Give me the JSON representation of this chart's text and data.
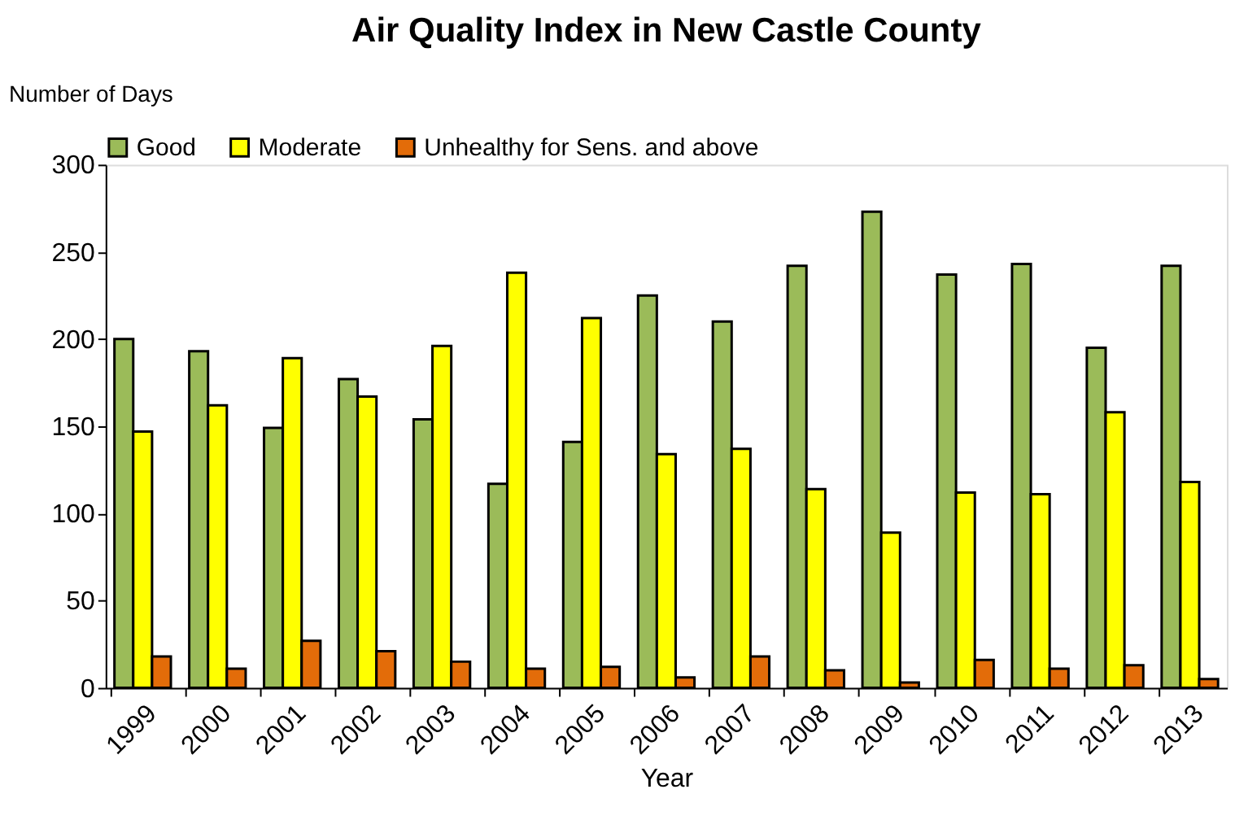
{
  "chart_data": {
    "type": "bar",
    "title": "Air Quality Index in New Castle County",
    "xlabel": "Year",
    "ylabel": "Number of Days",
    "categories": [
      "1999",
      "2000",
      "2001",
      "2002",
      "2003",
      "2004",
      "2005",
      "2006",
      "2007",
      "2008",
      "2009",
      "2010",
      "2011",
      "2012",
      "2013"
    ],
    "series": [
      {
        "name": "Good",
        "color": "#9bbb59",
        "values": [
          200,
          193,
          149,
          177,
          154,
          117,
          141,
          225,
          210,
          242,
          273,
          237,
          243,
          195,
          242
        ]
      },
      {
        "name": "Moderate",
        "color": "#ffff00",
        "values": [
          147,
          162,
          189,
          167,
          196,
          238,
          212,
          134,
          137,
          114,
          89,
          112,
          111,
          158,
          118
        ]
      },
      {
        "name": "Unhealthy  for Sens. and above",
        "color": "#e36c09",
        "values": [
          18,
          11,
          27,
          21,
          15,
          11,
          12,
          6,
          18,
          10,
          3,
          16,
          11,
          13,
          5
        ]
      }
    ],
    "ylim": [
      0,
      300
    ],
    "yticks": [
      0,
      50,
      100,
      150,
      200,
      250,
      300
    ],
    "grid": false,
    "legend": "top"
  }
}
